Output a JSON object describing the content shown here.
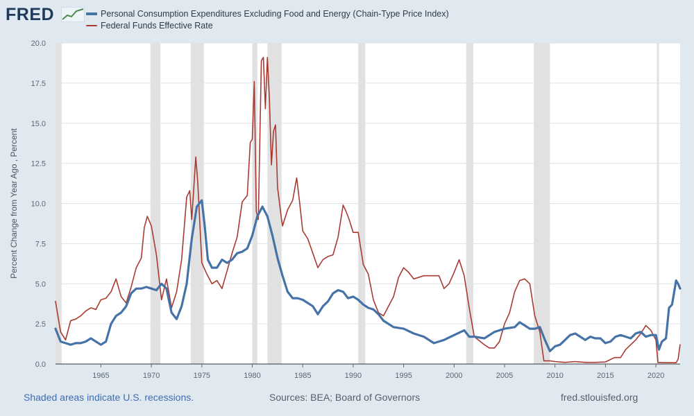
{
  "header": {
    "logo_text": "FRED"
  },
  "colors": {
    "background": "#e1e9f0",
    "plot_bg": "#ffffff",
    "grid": "#dde3ea",
    "recession": "#e1e1e1",
    "axis_text": "#5b6572"
  },
  "footer": {
    "recession_note": "Shaded areas indicate U.S. recessions.",
    "sources": "Sources: BEA; Board of Governors",
    "site": "fred.stlouisfed.org"
  },
  "chart_data": {
    "type": "line",
    "title": "",
    "xlabel": "",
    "ylabel": "Percent Change from Year Ago , Percent",
    "xlim": [
      1960.5,
      2022.4
    ],
    "ylim": [
      0,
      20
    ],
    "xticks": [
      1965,
      1970,
      1975,
      1980,
      1985,
      1990,
      1995,
      2000,
      2005,
      2010,
      2015,
      2020
    ],
    "yticks": [
      0.0,
      2.5,
      5.0,
      7.5,
      10.0,
      12.5,
      15.0,
      17.5,
      20.0
    ],
    "ytick_labels": [
      "0.0",
      "2.5",
      "5.0",
      "7.5",
      "10.0",
      "12.5",
      "15.0",
      "17.5",
      "20.0"
    ],
    "grid": true,
    "legend": "top-left",
    "recessions": [
      [
        1960.3,
        1961.1
      ],
      [
        1969.9,
        1970.9
      ],
      [
        1973.9,
        1975.2
      ],
      [
        1980.0,
        1980.5
      ],
      [
        1981.5,
        1982.9
      ],
      [
        1990.5,
        1991.2
      ],
      [
        2001.2,
        2001.9
      ],
      [
        2007.9,
        2009.5
      ],
      [
        2020.1,
        2020.3
      ]
    ],
    "series": [
      {
        "name": "Personal Consumption Expenditures Excluding Food and Energy (Chain-Type Price Index)",
        "color": "#4572a7",
        "width": 3.2,
        "x": [
          1960.5,
          1961.0,
          1961.5,
          1962.0,
          1962.5,
          1963.0,
          1963.5,
          1964.0,
          1964.5,
          1965.0,
          1965.5,
          1966.0,
          1966.5,
          1967.0,
          1967.5,
          1968.0,
          1968.5,
          1969.0,
          1969.5,
          1970.0,
          1970.5,
          1971.0,
          1971.5,
          1972.0,
          1972.5,
          1973.0,
          1973.5,
          1974.0,
          1974.5,
          1975.0,
          1975.3,
          1975.6,
          1976.0,
          1976.5,
          1977.0,
          1977.5,
          1978.0,
          1978.5,
          1979.0,
          1979.5,
          1980.0,
          1980.5,
          1981.0,
          1981.5,
          1982.0,
          1982.5,
          1983.0,
          1983.5,
          1984.0,
          1984.5,
          1985.0,
          1985.5,
          1986.0,
          1986.5,
          1987.0,
          1987.5,
          1988.0,
          1988.5,
          1989.0,
          1989.5,
          1990.0,
          1990.5,
          1991.0,
          1991.5,
          1992.0,
          1992.5,
          1993.0,
          1993.5,
          1994.0,
          1995.0,
          1996.0,
          1997.0,
          1998.0,
          1998.5,
          1999.0,
          2000.0,
          2001.0,
          2001.5,
          2002.0,
          2003.0,
          2004.0,
          2005.0,
          2006.0,
          2006.5,
          2007.0,
          2007.5,
          2008.0,
          2008.5,
          2009.0,
          2009.5,
          2010.0,
          2010.5,
          2011.0,
          2011.5,
          2012.0,
          2012.5,
          2013.0,
          2013.5,
          2014.0,
          2014.5,
          2015.0,
          2015.5,
          2016.0,
          2016.5,
          2017.0,
          2017.5,
          2018.0,
          2018.5,
          2019.0,
          2019.5,
          2020.0,
          2020.3,
          2020.6,
          2021.0,
          2021.3,
          2021.6,
          2022.0,
          2022.2,
          2022.4
        ],
        "values": [
          2.2,
          1.4,
          1.3,
          1.2,
          1.3,
          1.3,
          1.4,
          1.6,
          1.4,
          1.2,
          1.4,
          2.5,
          3.0,
          3.2,
          3.6,
          4.4,
          4.7,
          4.7,
          4.8,
          4.7,
          4.6,
          5.0,
          4.7,
          3.2,
          2.8,
          3.6,
          5.0,
          7.8,
          9.8,
          10.2,
          8.5,
          6.5,
          6.0,
          6.0,
          6.5,
          6.3,
          6.5,
          6.9,
          7.0,
          7.2,
          8.0,
          9.2,
          9.8,
          9.2,
          8.0,
          6.6,
          5.5,
          4.5,
          4.1,
          4.1,
          4.0,
          3.8,
          3.6,
          3.1,
          3.6,
          3.9,
          4.4,
          4.6,
          4.5,
          4.1,
          4.2,
          4.0,
          3.7,
          3.5,
          3.4,
          3.1,
          2.7,
          2.5,
          2.3,
          2.2,
          1.9,
          1.7,
          1.3,
          1.4,
          1.5,
          1.8,
          2.1,
          1.7,
          1.7,
          1.6,
          2.0,
          2.2,
          2.3,
          2.6,
          2.4,
          2.2,
          2.2,
          2.3,
          1.5,
          0.8,
          1.1,
          1.2,
          1.5,
          1.8,
          1.9,
          1.7,
          1.5,
          1.7,
          1.6,
          1.6,
          1.3,
          1.4,
          1.7,
          1.8,
          1.7,
          1.6,
          1.9,
          2.0,
          1.7,
          1.8,
          1.8,
          0.9,
          1.4,
          1.6,
          3.5,
          3.7,
          5.2,
          5.0,
          4.7
        ]
      },
      {
        "name": "Federal Funds Effective Rate",
        "color": "#a83a32",
        "width": 1.6,
        "x": [
          1960.5,
          1961.0,
          1961.5,
          1962.0,
          1962.5,
          1963.0,
          1963.5,
          1964.0,
          1964.5,
          1965.0,
          1965.5,
          1966.0,
          1966.5,
          1967.0,
          1967.5,
          1968.0,
          1968.5,
          1969.0,
          1969.3,
          1969.6,
          1970.0,
          1970.5,
          1971.0,
          1971.5,
          1972.0,
          1972.5,
          1973.0,
          1973.5,
          1973.8,
          1974.0,
          1974.4,
          1974.6,
          1975.0,
          1975.5,
          1976.0,
          1976.5,
          1977.0,
          1977.5,
          1978.0,
          1978.5,
          1979.0,
          1979.5,
          1979.8,
          1980.0,
          1980.2,
          1980.4,
          1980.6,
          1980.9,
          1981.1,
          1981.3,
          1981.5,
          1981.7,
          1981.9,
          1982.1,
          1982.3,
          1982.5,
          1982.7,
          1982.9,
          1983.0,
          1983.5,
          1984.0,
          1984.4,
          1984.7,
          1985.0,
          1985.5,
          1986.0,
          1986.5,
          1987.0,
          1987.5,
          1988.0,
          1988.5,
          1989.0,
          1989.3,
          1989.6,
          1990.0,
          1990.5,
          1991.0,
          1991.5,
          1992.0,
          1992.5,
          1993.0,
          1994.0,
          1994.5,
          1995.0,
          1995.5,
          1996.0,
          1997.0,
          1998.0,
          1998.5,
          1999.0,
          1999.5,
          2000.0,
          2000.5,
          2001.0,
          2001.5,
          2002.0,
          2003.0,
          2003.5,
          2004.0,
          2004.5,
          2005.0,
          2005.5,
          2006.0,
          2006.5,
          2007.0,
          2007.5,
          2008.0,
          2008.5,
          2008.9,
          2009.5,
          2010.0,
          2011.0,
          2012.0,
          2013.0,
          2014.0,
          2015.0,
          2015.9,
          2016.5,
          2017.0,
          2017.5,
          2018.0,
          2018.5,
          2019.0,
          2019.5,
          2020.0,
          2020.2,
          2020.5,
          2021.0,
          2022.0,
          2022.2,
          2022.4
        ],
        "values": [
          3.9,
          2.0,
          1.5,
          2.7,
          2.8,
          3.0,
          3.3,
          3.5,
          3.4,
          4.0,
          4.1,
          4.5,
          5.3,
          4.2,
          3.8,
          4.8,
          6.0,
          6.6,
          8.5,
          9.2,
          8.6,
          6.8,
          4.0,
          5.3,
          3.5,
          4.5,
          6.5,
          10.4,
          10.8,
          9.0,
          12.9,
          11.3,
          6.3,
          5.6,
          5.0,
          5.2,
          4.7,
          5.8,
          6.9,
          7.9,
          10.1,
          10.5,
          13.8,
          14.0,
          17.6,
          9.5,
          9.0,
          18.9,
          19.1,
          15.9,
          19.1,
          16.5,
          12.4,
          14.5,
          14.9,
          11.0,
          10.0,
          9.0,
          8.6,
          9.6,
          10.2,
          11.6,
          10.0,
          8.3,
          7.8,
          6.9,
          6.0,
          6.5,
          6.7,
          6.8,
          7.9,
          9.9,
          9.5,
          9.0,
          8.2,
          8.2,
          6.2,
          5.6,
          4.0,
          3.2,
          3.0,
          4.2,
          5.4,
          6.0,
          5.7,
          5.3,
          5.5,
          5.5,
          5.5,
          4.7,
          5.0,
          5.7,
          6.5,
          5.5,
          3.5,
          1.7,
          1.2,
          1.0,
          1.0,
          1.4,
          2.5,
          3.2,
          4.5,
          5.2,
          5.3,
          5.0,
          3.0,
          2.0,
          0.2,
          0.2,
          0.15,
          0.1,
          0.15,
          0.1,
          0.1,
          0.13,
          0.4,
          0.4,
          0.9,
          1.2,
          1.5,
          1.9,
          2.4,
          2.1,
          1.5,
          0.1,
          0.09,
          0.08,
          0.08,
          0.3,
          1.2
        ]
      }
    ]
  }
}
